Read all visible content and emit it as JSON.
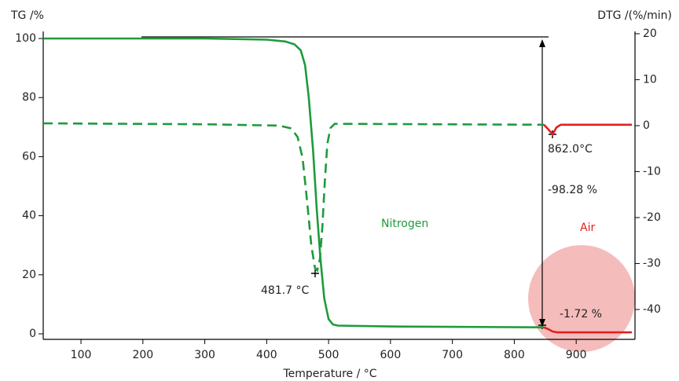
{
  "chart_data": {
    "type": "line",
    "xlabel": "Temperature / °C",
    "ylabel": "TG /%",
    "y2label": "DTG /(%/min)",
    "annotations": [
      "481.7 °C",
      "862.0°C",
      "-98.28 %",
      "-1.72 %",
      "Nitrogen",
      "Air"
    ],
    "xlim": [
      39,
      995
    ],
    "xticks": [
      100,
      200,
      300,
      400,
      500,
      600,
      700,
      800,
      900
    ],
    "ylim": [
      -1.86,
      102.4
    ],
    "yticks": [
      0,
      20,
      40,
      60,
      80,
      100
    ],
    "y2lim": [
      -46.5,
      20.5
    ],
    "y2ticks": [
      -40,
      -30,
      -20,
      -10,
      0,
      10,
      20
    ],
    "series": [
      {
        "color": "#1e9b3c",
        "line_style": "solid",
        "x": [
          39,
          300,
          400,
          430,
          445,
          455,
          462,
          468,
          475,
          481,
          487,
          493,
          500,
          507,
          515,
          600,
          848
        ],
        "values": [
          100,
          100,
          99.6,
          99,
          98,
          96,
          91,
          80,
          62,
          42,
          25,
          12,
          5,
          3.2,
          2.8,
          2.5,
          2.2
        ]
      },
      {
        "color": "#e02020",
        "line_style": "solid",
        "x": [
          848,
          855,
          862,
          870,
          990
        ],
        "values": [
          2.2,
          1.6,
          0.8,
          0.5,
          0.5
        ]
      },
      {
        "color": "#1e9b3c",
        "line_style": "dashed",
        "axis": "y2",
        "x": [
          39,
          300,
          420,
          440,
          450,
          458,
          465,
          472,
          478,
          481.7,
          486,
          490,
          494,
          498,
          503,
          510,
          848
        ],
        "values": [
          0.5,
          0.3,
          0,
          -0.6,
          -2.5,
          -7,
          -16,
          -26,
          -31,
          -31.5,
          -29,
          -22,
          -12,
          -4,
          -0.5,
          0.4,
          0.2
        ]
      },
      {
        "color": "#e02020",
        "line_style": "solid",
        "axis": "y2",
        "x": [
          848,
          855,
          862,
          868,
          875,
          990
        ],
        "values": [
          0.2,
          -0.8,
          -1.9,
          -0.4,
          0.2,
          0.2
        ]
      }
    ]
  }
}
